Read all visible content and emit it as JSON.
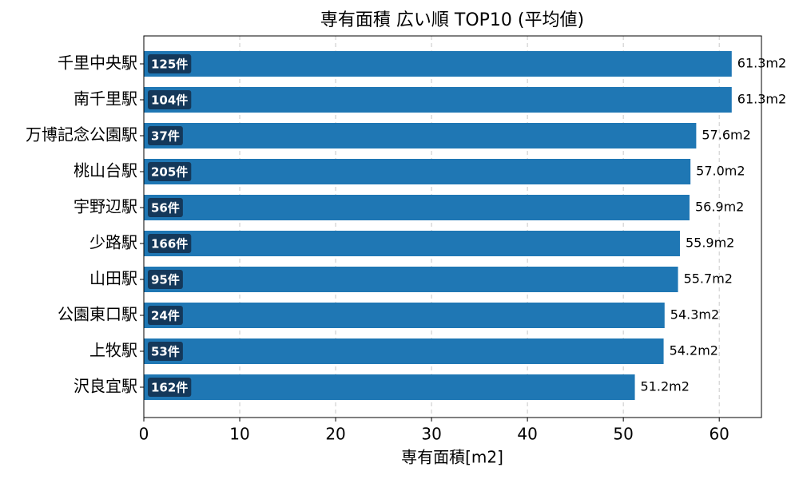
{
  "chart_data": {
    "type": "barh",
    "title": "専有面積 広い順 TOP10 (平均値)",
    "xlabel": "専有面積[m2]",
    "categories": [
      "千里中央駅",
      "南千里駅",
      "万博記念公園駅",
      "桃山台駅",
      "宇野辺駅",
      "少路駅",
      "山田駅",
      "公園東口駅",
      "上牧駅",
      "沢良宜駅"
    ],
    "values": [
      61.3,
      61.3,
      57.6,
      57.0,
      56.9,
      55.9,
      55.7,
      54.3,
      54.2,
      51.2
    ],
    "value_labels": [
      "61.3m2",
      "61.3m2",
      "57.6m2",
      "57.0m2",
      "56.9m2",
      "55.9m2",
      "55.7m2",
      "54.3m2",
      "54.2m2",
      "51.2m2"
    ],
    "count_labels": [
      "125件",
      "104件",
      "37件",
      "205件",
      "56件",
      "166件",
      "95件",
      "24件",
      "53件",
      "162件"
    ],
    "color": "#1f77b4",
    "xlim": [
      0,
      64.4
    ],
    "xticks": [
      0,
      10,
      20,
      30,
      40,
      50,
      60
    ],
    "grid": true
  }
}
